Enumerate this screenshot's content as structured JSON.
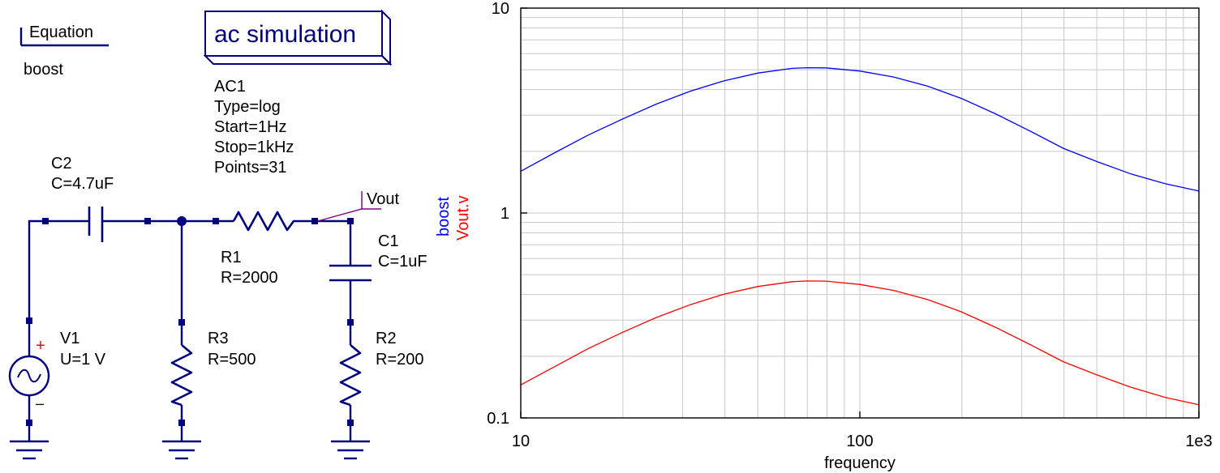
{
  "equation": {
    "title": "Equation",
    "name": "boost"
  },
  "simulation_box": {
    "label": "ac simulation",
    "name": "AC1",
    "params": [
      "Type=log",
      "Start=1Hz",
      "Stop=1kHz",
      "Points=31"
    ]
  },
  "components": {
    "c2": {
      "name": "C2",
      "value": "C=4.7uF"
    },
    "r1": {
      "name": "R1",
      "value": "R=2000"
    },
    "c1": {
      "name": "C1",
      "value": "C=1uF"
    },
    "v1": {
      "name": "V1",
      "value": "U=1 V"
    },
    "r3": {
      "name": "R3",
      "value": "R=500"
    },
    "r2": {
      "name": "R2",
      "value": "R=200"
    }
  },
  "probe": {
    "label": "Vout"
  },
  "source_symbols": {
    "plus": "+",
    "minus": "–"
  },
  "colors": {
    "wire": "#000080",
    "probe": "#800080",
    "boost": "#0000ff",
    "vout": "#ff0000",
    "plus_mark": "#ff0000",
    "grid": "#c8c8c8"
  },
  "chart_data": {
    "type": "line",
    "xlabel": "frequency",
    "x_scale": "log",
    "y_scale": "log",
    "xlim": [
      10,
      1000
    ],
    "ylim": [
      0.1,
      10
    ],
    "x_tick_labels": [
      "10",
      "100",
      "1e3"
    ],
    "y_tick_labels": [
      "0.1",
      "1",
      "10"
    ],
    "grid": true,
    "legend_placement": "left of plot, rotated vertical",
    "series": [
      {
        "name": "boost",
        "color": "#0000ff",
        "x": [
          10,
          12.6,
          15.8,
          20,
          25.1,
          31.6,
          39.8,
          50.1,
          63.1,
          70,
          79.4,
          100,
          125.9,
          158.5,
          199.5,
          251.2,
          316.2,
          398.1,
          501.2,
          631,
          794.3,
          1000
        ],
        "y": [
          1.6,
          1.97,
          2.4,
          2.88,
          3.4,
          3.93,
          4.42,
          4.82,
          5.08,
          5.12,
          5.11,
          4.93,
          4.61,
          4.16,
          3.62,
          3.05,
          2.52,
          2.07,
          1.78,
          1.55,
          1.39,
          1.28
        ]
      },
      {
        "name": "Vout.v",
        "color": "#ff0000",
        "x": [
          10,
          12.6,
          15.8,
          20,
          25.1,
          31.6,
          39.8,
          50.1,
          63.1,
          70,
          79.4,
          100,
          125.9,
          158.5,
          199.5,
          251.2,
          316.2,
          398.1,
          501.2,
          631,
          794.3,
          1000
        ],
        "y": [
          0.145,
          0.178,
          0.218,
          0.262,
          0.309,
          0.357,
          0.402,
          0.438,
          0.462,
          0.466,
          0.465,
          0.448,
          0.419,
          0.378,
          0.329,
          0.277,
          0.229,
          0.188,
          0.162,
          0.141,
          0.126,
          0.116
        ]
      }
    ]
  }
}
